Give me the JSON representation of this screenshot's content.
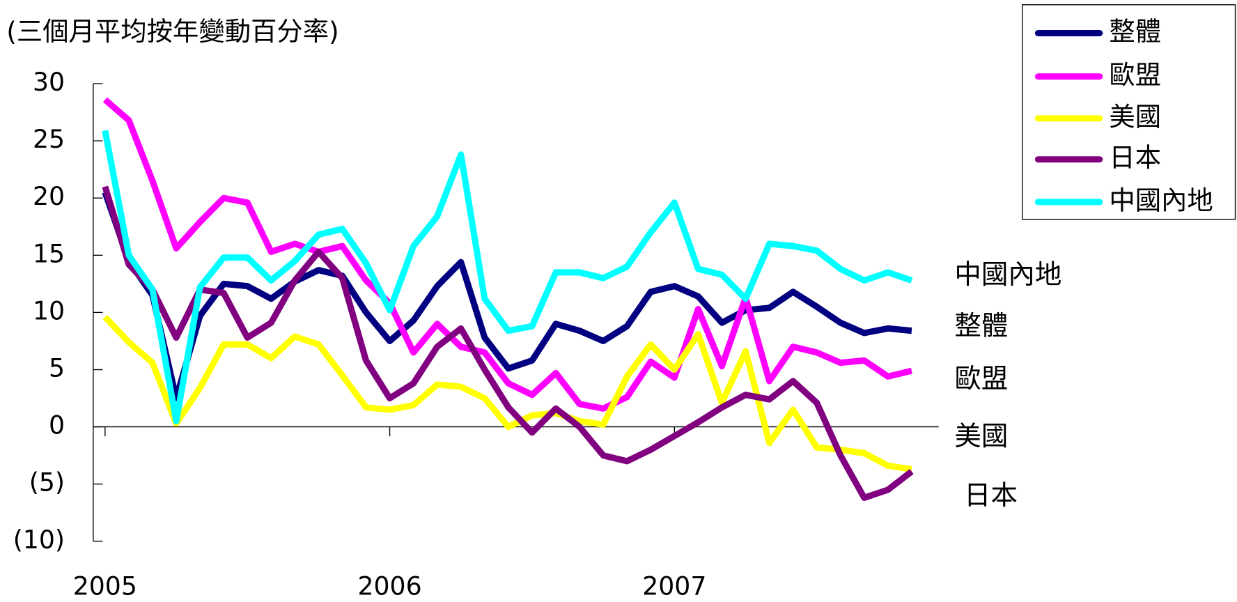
{
  "chart_data": {
    "type": "line",
    "title": "(三個月平均按年變動百分率)",
    "categories": [
      "2005",
      null,
      null,
      null,
      null,
      null,
      null,
      null,
      null,
      null,
      null,
      null,
      "2006",
      null,
      null,
      null,
      null,
      null,
      null,
      null,
      null,
      null,
      null,
      null,
      "2007",
      null,
      null,
      null,
      null,
      null,
      null,
      null,
      null,
      null,
      null
    ],
    "series": [
      {
        "name": "整體",
        "color": "#000080",
        "values": [
          20.5,
          14.5,
          11.5,
          2.5,
          9.7,
          12.5,
          12.3,
          11.2,
          12.7,
          13.7,
          13.2,
          10,
          7.5,
          9.3,
          12.3,
          14.4,
          7.8,
          5.1,
          5.8,
          9,
          8.4,
          7.5,
          8.8,
          11.8,
          12.3,
          11.4,
          9.1,
          10.2,
          10.4,
          11.8,
          10.5,
          9.1,
          8.2,
          8.6,
          8.4
        ]
      },
      {
        "name": "歐盟",
        "color": "#ff00ff",
        "values": [
          28.6,
          26.8,
          21.5,
          15.6,
          17.9,
          20,
          19.6,
          15.3,
          16,
          15.3,
          15.8,
          12.8,
          10.8,
          6.5,
          9,
          7,
          6.5,
          3.8,
          2.8,
          4.7,
          2,
          1.6,
          2.6,
          5.7,
          4.3,
          10.3,
          5.3,
          11.3,
          4,
          7,
          6.5,
          5.6,
          5.8,
          4.4,
          4.9
        ]
      },
      {
        "name": "美國",
        "color": "#ffff00",
        "values": [
          9.6,
          7.4,
          5.6,
          0.3,
          3.4,
          7.2,
          7.2,
          6,
          7.9,
          7.2,
          4.5,
          1.7,
          1.5,
          1.9,
          3.7,
          3.5,
          2.5,
          0,
          1,
          1.2,
          0.5,
          0.2,
          4.4,
          7.2,
          5,
          8.1,
          2.1,
          6.6,
          -1.4,
          1.5,
          -1.8,
          -2,
          -2.3,
          -3.4,
          -3.7
        ]
      },
      {
        "name": "日本",
        "color": "#800080",
        "values": [
          21,
          14.2,
          12,
          7.8,
          12,
          11.7,
          7.8,
          9.1,
          12.8,
          15.3,
          13,
          5.8,
          2.5,
          3.8,
          7,
          8.6,
          5,
          1.7,
          -0.5,
          1.6,
          0,
          -2.5,
          -3,
          -2,
          -0.8,
          0.4,
          1.7,
          2.8,
          2.4,
          4,
          2.1,
          -2.5,
          -6.2,
          -5.5,
          -3.9
        ]
      },
      {
        "name": "中國內地",
        "color": "#00ffff",
        "values": [
          25.9,
          15,
          12,
          0.5,
          12.2,
          14.8,
          14.8,
          12.8,
          14.5,
          16.8,
          17.3,
          14.3,
          10.2,
          15.8,
          18.4,
          23.8,
          11.2,
          8.4,
          8.8,
          13.5,
          13.5,
          13,
          14,
          17,
          19.6,
          13.8,
          13.3,
          11.2,
          16,
          15.8,
          15.4,
          13.8,
          12.8,
          13.5,
          12.8
        ]
      }
    ],
    "annotations": [
      "中國內地",
      "整體",
      "歐盟",
      "美國",
      "日本"
    ],
    "ylim": [
      -10,
      30
    ],
    "yticks": [
      {
        "value": -10,
        "label": "(10)"
      },
      {
        "value": -5,
        "label": "(5)"
      },
      0,
      5,
      10,
      15,
      20,
      25,
      30
    ],
    "legend": "top-right"
  }
}
